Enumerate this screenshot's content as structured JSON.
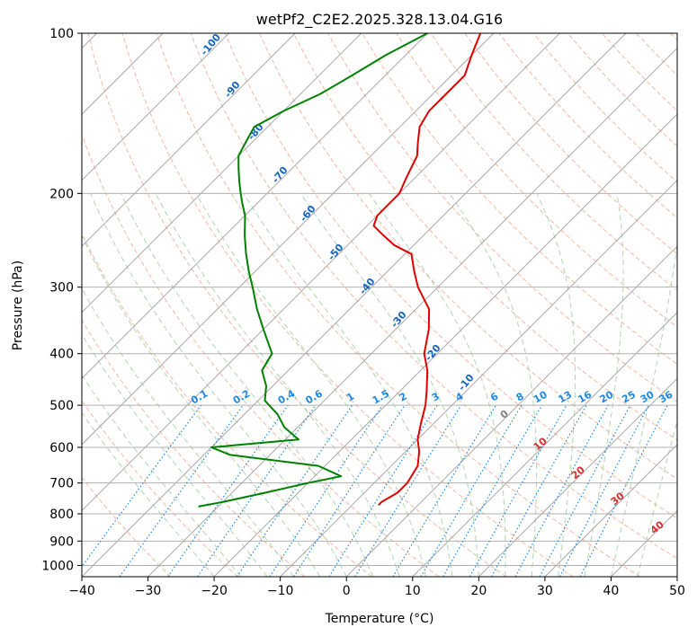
{
  "chart_data": {
    "type": "line",
    "title": "wetPf2_C2E2.2025.328.13.04.G16",
    "xlabel": "Temperature (°C)",
    "ylabel": "Pressure (hPa)",
    "xlim": [
      -40,
      50
    ],
    "ylim": [
      1050,
      100
    ],
    "y_scale": "log",
    "skew": true,
    "grid": true,
    "x_ticks": [
      -40,
      -30,
      -20,
      -10,
      0,
      10,
      20,
      30,
      40,
      50
    ],
    "y_ticks": [
      100,
      200,
      300,
      400,
      500,
      600,
      700,
      800,
      900,
      1000
    ],
    "series": [
      {
        "color": "#e00000",
        "p": [
          100,
          110,
          120,
          130,
          140,
          150,
          160,
          170,
          180,
          190,
          200,
          210,
          220,
          230,
          240,
          250,
          260,
          280,
          300,
          330,
          360,
          400,
          430,
          470,
          500,
          540,
          580,
          610,
          650,
          700,
          730,
          760,
          770
        ],
        "t": [
          -62,
          -60,
          -58,
          -58,
          -58,
          -57,
          -55,
          -53,
          -52,
          -51,
          -50,
          -50,
          -50,
          -49,
          -46,
          -43,
          -39,
          -36,
          -33,
          -28,
          -25,
          -22,
          -19,
          -16,
          -14,
          -12,
          -10,
          -8,
          -6,
          -5,
          -5,
          -6,
          -6
        ]
      },
      {
        "color": "#008000",
        "p": [
          100,
          110,
          120,
          130,
          140,
          150,
          160,
          170,
          180,
          190,
          200,
          210,
          220,
          240,
          260,
          280,
          300,
          330,
          360,
          400,
          430,
          460,
          490,
          520,
          550,
          580,
          600,
          620,
          650,
          680,
          700,
          730,
          760,
          775
        ],
        "td": [
          -70,
          -73,
          -75,
          -77,
          -80,
          -82,
          -81,
          -80,
          -78,
          -76,
          -74,
          -72,
          -70,
          -67,
          -64,
          -61,
          -58,
          -54,
          -50,
          -45,
          -44,
          -41,
          -39,
          -35,
          -32,
          -28,
          -40,
          -36,
          -21,
          -16,
          -20,
          -25,
          -30,
          -33
        ]
      }
    ],
    "isotherm_labels": [
      "-100",
      "-90",
      "-80",
      "-70",
      "-60",
      "-50",
      "-40",
      "-30",
      "-20",
      "-10"
    ],
    "mixing_ratio_labels": [
      "0.1",
      "0.2",
      "0.4",
      "0.6",
      "1",
      "1.5",
      "2",
      "3",
      "4",
      "6",
      "8",
      "10",
      "13",
      "16",
      "20",
      "25",
      "30",
      "36"
    ],
    "moist_adiabat_labels": [
      "0",
      "10",
      "20",
      "30",
      "40"
    ]
  }
}
